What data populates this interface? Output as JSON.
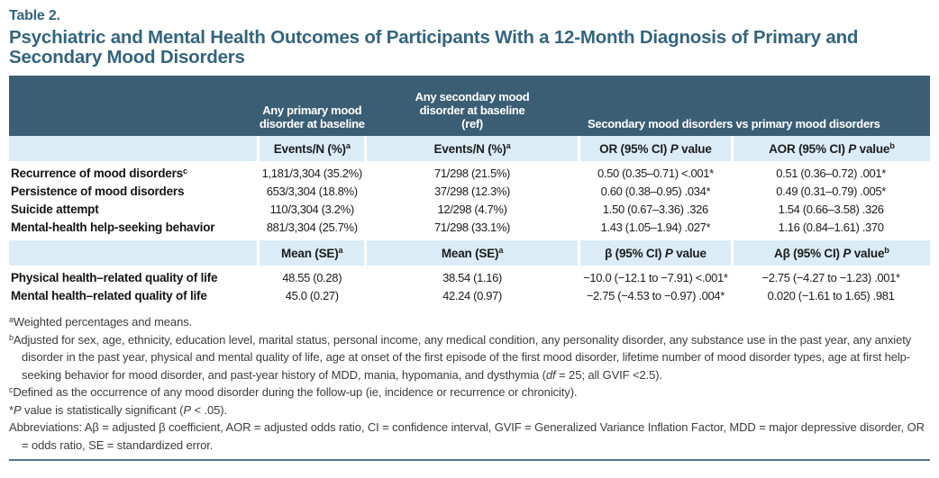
{
  "header": {
    "label": "Table 2.",
    "title": "Psychiatric and Mental Health Outcomes of Participants With a 12-Month Diagnosis of Primary and Secondary Mood Disorders"
  },
  "table": {
    "columns": {
      "primary": "Any primary mood disorder at baseline",
      "secondary": "Any secondary mood disorder at baseline (ref)",
      "comparison": "Secondary mood disorders vs primary mood disorders"
    },
    "section1": {
      "subheaders": [
        "Events/N (%){sup}a{/sup}",
        "Events/N (%){sup}a{/sup}",
        "OR (95% CI) {i}P{/i} value",
        "AOR (95% CI) {i}P{/i} value{sup}b{/sup}"
      ],
      "rows": [
        {
          "label": "Recurrence of mood disorders{sup}c{/sup}",
          "primary": "1,181/3,304 (35.2%)",
          "secondary": "71/298 (21.5%)",
          "or": "0.50 (0.35–0.71) <.001*",
          "aor": "0.51 (0.36–0.72) .001*"
        },
        {
          "label": "Persistence of mood disorders",
          "primary": "653/3,304 (18.8%)",
          "secondary": "37/298 (12.3%)",
          "or": "0.60 (0.38–0.95) .034*",
          "aor": "0.49 (0.31–0.79) .005*"
        },
        {
          "label": "Suicide attempt",
          "primary": "110/3,304 (3.2%)",
          "secondary": "12/298 (4.7%)",
          "or": "1.50 (0.67–3.36) .326",
          "aor": "1.54 (0.66–3.58) .326"
        },
        {
          "label": "Mental-health help-seeking behavior",
          "primary": "881/3,304 (25.7%)",
          "secondary": "71/298 (33.1%)",
          "or": "1.43 (1.05–1.94) .027*",
          "aor": "1.16 (0.84–1.61) .370"
        }
      ]
    },
    "section2": {
      "subheaders": [
        "Mean (SE){sup}a{/sup}",
        "Mean (SE){sup}a{/sup}",
        "β (95% CI) {i}P{/i} value",
        "Aβ (95% CI) {i}P{/i} value{sup}b{/sup}"
      ],
      "rows": [
        {
          "label": "Physical health–related quality of life",
          "primary": "48.55 (0.28)",
          "secondary": "38.54 (1.16)",
          "or": "−10.0 (−12.1 to −7.91) <.001*",
          "aor": "−2.75 (−4.27 to −1.23) .001*"
        },
        {
          "label": "Mental health–related quality of life",
          "primary": "45.0 (0.27)",
          "secondary": "42.24 (0.97)",
          "or": "−2.75 (−4.53 to −0.97) .004*",
          "aor": "0.020 (−1.61 to 1.65) .981"
        }
      ]
    }
  },
  "footnotes": [
    "{sup}a{/sup}Weighted percentages and means.",
    "{sup}b{/sup}Adjusted for sex, age, ethnicity, education level, marital status, personal income, any medical condition, any personality disorder, any substance use in the past year, any anxiety disorder in the past year, physical and mental quality of life, age at onset of the first episode of the first mood disorder, lifetime number of mood disorder types, age at first help-seeking behavior for mood disorder, and past-year history of MDD, mania, hypomania, and dysthymia ({i}df{/i} = 25; all GVIF <2.5).",
    "{sup}c{/sup}Defined as the occurrence of any mood disorder during the follow-up (ie, incidence or recurrence or chronicity).",
    "*{i}P{/i} value is statistically significant ({i}P{/i} < .05).",
    "Abbreviations: Aβ = adjusted β coefficient, AOR = adjusted odds ratio, CI = confidence interval, GVIF = Generalized Variance Inflation Factor, MDD = major depressive disorder, OR = odds ratio, SE = standardized error."
  ],
  "colors": {
    "header_bg": "#3b5e74",
    "subheader_bg": "#dbecf7",
    "title_text": "#34647e",
    "bottom_rule": "#53738f"
  }
}
